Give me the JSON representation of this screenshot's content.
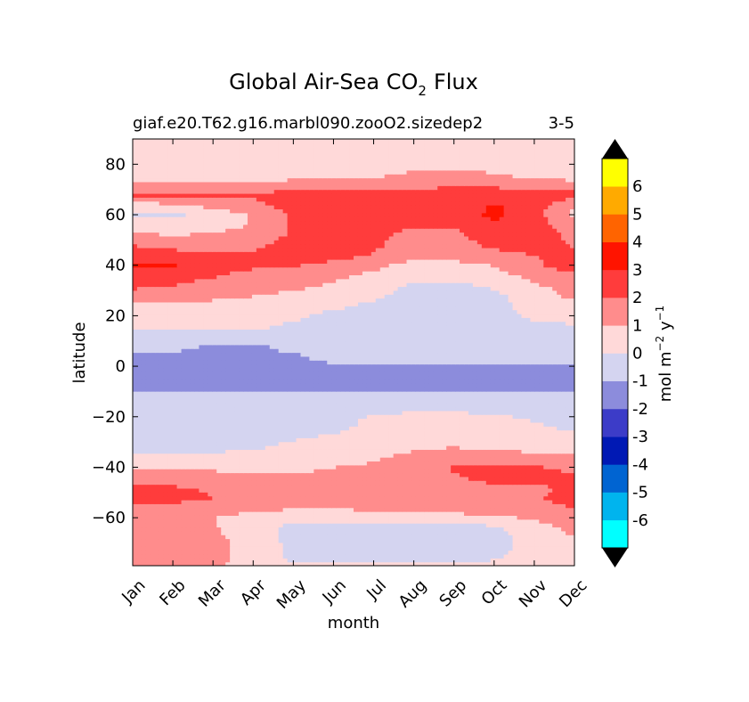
{
  "chart_data": {
    "type": "heatmap",
    "plot_style": "filled-contour",
    "title": "Global Air-Sea CO",
    "title_subscript": "2",
    "title_suffix": "Flux",
    "subtitle_left": "giaf.e20.T62.g16.marbl090.zooO2.sizedep2",
    "subtitle_right": "3-5",
    "xlabel": "month",
    "ylabel": "latitude",
    "x_categories": [
      "Jan",
      "Feb",
      "Mar",
      "Apr",
      "May",
      "Jun",
      "Jul",
      "Aug",
      "Sep",
      "Oct",
      "Nov",
      "Dec"
    ],
    "xlim": [
      1,
      12
    ],
    "ylim": [
      -79,
      90
    ],
    "yticks": [
      -60,
      -40,
      -20,
      0,
      20,
      40,
      60,
      80
    ],
    "ytick_labels": [
      "−60",
      "−40",
      "−20",
      "0",
      "20",
      "40",
      "60",
      "80"
    ],
    "colorbar": {
      "label_main": "mol m",
      "label_exp1": "−2",
      "label_mid": " y",
      "label_exp2": "−1",
      "levels": [
        -7,
        -6,
        -5,
        -4,
        -3,
        -2,
        -1,
        0,
        1,
        2,
        3,
        4,
        5,
        6,
        7
      ],
      "tick_labels": [
        "-6",
        "-5",
        "-4",
        "-3",
        "-2",
        "-1",
        "0",
        "1",
        "2",
        "3",
        "4",
        "5",
        "6"
      ],
      "tick_values": [
        -6,
        -5,
        -4,
        -3,
        -2,
        -1,
        0,
        1,
        2,
        3,
        4,
        5,
        6
      ],
      "colors": [
        "#00ffff",
        "#00b4ee",
        "#0064d2",
        "#0019b4",
        "#3c3cc8",
        "#8c8cdc",
        "#d4d4f0",
        "#ffd9d9",
        "#ff8c8c",
        "#ff3c3c",
        "#ff1400",
        "#ff6400",
        "#ffaa00",
        "#ffff00"
      ],
      "extend_low_color": "#000000",
      "extend_high_color": "#000000"
    },
    "months": [
      1,
      2,
      3,
      4,
      5,
      6,
      7,
      8,
      9,
      10,
      11,
      12
    ],
    "latitudes": [
      -79,
      -76,
      -72,
      -68,
      -64,
      -60,
      -56,
      -52,
      -48,
      -44,
      -40,
      -36,
      -32,
      -28,
      -24,
      -20,
      -16,
      -12,
      -8,
      -4,
      0,
      4,
      8,
      12,
      16,
      20,
      24,
      28,
      32,
      36,
      40,
      44,
      48,
      52,
      56,
      60,
      64,
      68,
      72,
      76,
      80,
      84,
      88,
      90
    ],
    "flux_values": [
      [
        1.5,
        1.8,
        1.2,
        0.5,
        0.3,
        0.2,
        0.2,
        0.2,
        0.3,
        0.4,
        0.6,
        0.9
      ],
      [
        1.5,
        1.8,
        1.3,
        0.6,
        -0.2,
        -0.3,
        -0.3,
        -0.3,
        -0.3,
        -0.1,
        0.5,
        0.9
      ],
      [
        1.4,
        1.5,
        1.3,
        0.6,
        -0.2,
        -0.4,
        -0.5,
        -0.5,
        -0.5,
        -0.3,
        0.4,
        0.8
      ],
      [
        1.3,
        1.4,
        1.3,
        0.5,
        -0.3,
        -0.6,
        -0.7,
        -0.7,
        -0.7,
        -0.4,
        0.5,
        1.0
      ],
      [
        1.2,
        1.3,
        1.1,
        0.3,
        -0.2,
        -0.6,
        -0.8,
        -0.8,
        -0.7,
        -0.2,
        0.6,
        1.2
      ],
      [
        1.2,
        1.2,
        1.0,
        0.4,
        0.2,
        0.3,
        0.4,
        0.5,
        0.6,
        0.8,
        1.1,
        1.4
      ],
      [
        1.6,
        1.8,
        1.7,
        1.3,
        1.1,
        1.1,
        1.2,
        1.3,
        1.4,
        1.6,
        1.8,
        2.0
      ],
      [
        2.3,
        2.2,
        2.0,
        1.6,
        1.3,
        1.3,
        1.3,
        1.4,
        1.5,
        1.7,
        1.9,
        2.3
      ],
      [
        2.2,
        2.1,
        1.9,
        1.4,
        1.2,
        1.2,
        1.2,
        1.4,
        1.5,
        1.8,
        1.9,
        2.1
      ],
      [
        1.6,
        1.5,
        1.4,
        1.2,
        1.1,
        1.1,
        1.2,
        1.5,
        1.9,
        2.3,
        2.3,
        2.2
      ],
      [
        0.8,
        0.8,
        0.8,
        0.8,
        0.9,
        1.0,
        1.1,
        1.4,
        2.1,
        2.3,
        2.1,
        1.8
      ],
      [
        0.2,
        0.3,
        0.3,
        0.4,
        0.6,
        0.8,
        0.9,
        1.2,
        1.5,
        1.4,
        1.3,
        1.2
      ],
      [
        -0.4,
        -0.4,
        -0.3,
        -0.1,
        0.2,
        0.4,
        0.6,
        0.9,
        1.0,
        0.9,
        0.7,
        0.5
      ],
      [
        -0.5,
        -0.5,
        -0.4,
        -0.3,
        -0.1,
        0.1,
        0.4,
        0.6,
        0.6,
        0.5,
        0.3,
        0.1
      ],
      [
        -0.5,
        -0.5,
        -0.5,
        -0.4,
        -0.3,
        -0.2,
        0.2,
        0.4,
        0.4,
        0.3,
        0.1,
        -0.1
      ],
      [
        -0.5,
        -0.5,
        -0.5,
        -0.5,
        -0.4,
        -0.3,
        0.1,
        0.2,
        0.2,
        0.1,
        -0.1,
        -0.2
      ],
      [
        -0.4,
        -0.5,
        -0.5,
        -0.5,
        -0.5,
        -0.4,
        -0.3,
        -0.2,
        -0.2,
        -0.3,
        -0.4,
        -0.4
      ],
      [
        -0.3,
        -0.4,
        -0.4,
        -0.5,
        -0.6,
        -0.5,
        -0.5,
        -0.4,
        -0.5,
        -0.5,
        -0.4,
        -0.3
      ],
      [
        -1.3,
        -1.3,
        -1.3,
        -1.3,
        -1.3,
        -1.3,
        -1.4,
        -1.4,
        -1.4,
        -1.4,
        -1.3,
        -1.3
      ],
      [
        -1.4,
        -1.4,
        -1.3,
        -1.3,
        -1.3,
        -1.3,
        -1.4,
        -1.4,
        -1.4,
        -1.4,
        -1.4,
        -1.4
      ],
      [
        -1.3,
        -1.4,
        -1.2,
        -1.2,
        -1.2,
        -1.3,
        -1.3,
        -1.3,
        -1.3,
        -1.3,
        -1.3,
        -1.3
      ],
      [
        -1.2,
        -1.3,
        -1.5,
        -1.3,
        -1.3,
        -0.5,
        -0.4,
        -0.4,
        -0.4,
        -0.4,
        -0.4,
        -0.4
      ],
      [
        -0.6,
        -0.6,
        -1.2,
        -1.3,
        -0.5,
        -0.3,
        -0.4,
        -0.4,
        -0.4,
        -0.4,
        -0.4,
        -0.5
      ],
      [
        -0.3,
        -0.3,
        -0.3,
        -0.3,
        -0.3,
        -0.3,
        -0.4,
        -0.5,
        -0.5,
        -0.4,
        -0.3,
        -0.3
      ],
      [
        0.3,
        0.2,
        0.2,
        0.2,
        -0.2,
        -0.3,
        -0.5,
        -0.5,
        -0.5,
        -0.4,
        -0.2,
        -0.1
      ],
      [
        0.6,
        0.5,
        0.5,
        0.5,
        0.2,
        -0.3,
        -0.5,
        -0.6,
        -0.6,
        -0.5,
        0.2,
        0.4
      ],
      [
        0.8,
        0.7,
        0.6,
        0.6,
        0.5,
        0.2,
        -0.2,
        -0.5,
        -0.5,
        -0.3,
        0.4,
        0.8
      ],
      [
        1.6,
        1.5,
        1.3,
        1.0,
        0.8,
        0.5,
        0.2,
        -0.4,
        -0.5,
        -0.3,
        0.6,
        1.2
      ],
      [
        2.2,
        2.0,
        1.7,
        1.3,
        1.2,
        0.9,
        0.5,
        -0.2,
        -0.3,
        0.2,
        0.9,
        1.3
      ],
      [
        2.4,
        2.3,
        2.1,
        1.6,
        1.5,
        1.2,
        0.8,
        0.3,
        0.4,
        0.7,
        1.2,
        1.7
      ],
      [
        3.2,
        3.1,
        2.5,
        2.2,
        2.1,
        1.6,
        1.2,
        0.7,
        0.8,
        1.0,
        1.8,
        2.6
      ],
      [
        2.5,
        2.4,
        2.1,
        2.2,
        2.6,
        2.5,
        1.9,
        1.2,
        1.2,
        1.5,
        2.0,
        2.2
      ],
      [
        2.0,
        1.7,
        1.5,
        1.8,
        2.3,
        2.8,
        2.2,
        1.4,
        1.4,
        2.3,
        2.6,
        1.9
      ],
      [
        1.1,
        1.0,
        1.1,
        1.6,
        2.1,
        2.6,
        2.3,
        1.6,
        1.7,
        2.7,
        2.6,
        1.7
      ],
      [
        0.7,
        0.6,
        0.5,
        1.1,
        2.2,
        2.6,
        2.7,
        2.1,
        2.1,
        2.8,
        2.4,
        1.4
      ],
      [
        -0.2,
        -0.2,
        0.4,
        1.1,
        2.2,
        2.3,
        2.4,
        2.3,
        2.5,
        3.2,
        2.4,
        0.8
      ],
      [
        0.7,
        0.8,
        1.3,
        1.7,
        2.4,
        2.6,
        2.6,
        2.3,
        2.5,
        3.1,
        2.5,
        1.0
      ],
      [
        2.2,
        2.2,
        2.2,
        2.2,
        2.4,
        2.5,
        2.3,
        2.1,
        2.3,
        2.6,
        2.6,
        2.5
      ],
      [
        1.3,
        1.2,
        1.2,
        1.2,
        1.4,
        1.5,
        1.6,
        1.8,
        2.0,
        1.8,
        1.4,
        1.3
      ],
      [
        0.5,
        0.5,
        0.5,
        0.5,
        0.6,
        0.7,
        0.8,
        1.2,
        1.3,
        1.1,
        0.7,
        0.6
      ],
      [
        0.3,
        0.3,
        0.3,
        0.3,
        0.4,
        0.5,
        0.5,
        0.7,
        0.7,
        0.5,
        0.4,
        0.3
      ],
      [
        0.2,
        0.2,
        0.2,
        0.2,
        0.3,
        0.3,
        0.3,
        0.4,
        0.4,
        0.3,
        0.3,
        0.2
      ],
      [
        0.2,
        0.2,
        0.2,
        0.2,
        0.2,
        0.2,
        0.3,
        0.3,
        0.3,
        0.3,
        0.2,
        0.2
      ],
      [
        0.2,
        0.2,
        0.2,
        0.2,
        0.2,
        0.2,
        0.2,
        0.3,
        0.3,
        0.2,
        0.2,
        0.2
      ]
    ]
  }
}
